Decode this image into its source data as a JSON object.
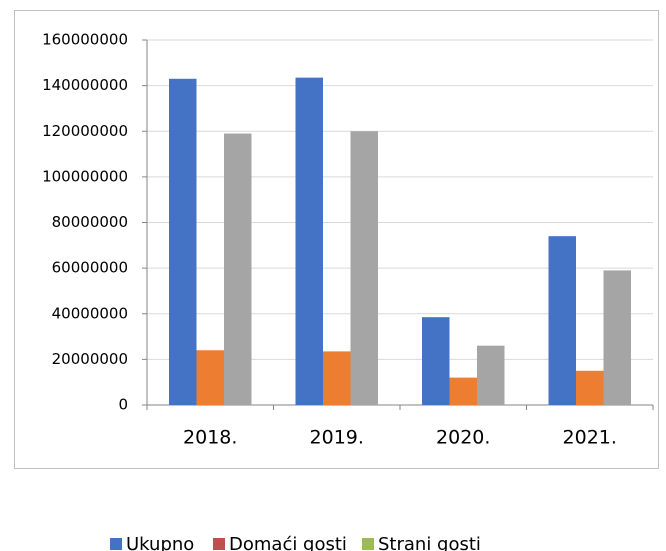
{
  "chart_data": {
    "type": "bar",
    "categories": [
      "2018.",
      "2019.",
      "2020.",
      "2021."
    ],
    "series": [
      {
        "name": "Ukupno",
        "color": "#4472c4",
        "legend_color": "#4472c4",
        "values": [
          143000000,
          143500000,
          38500000,
          74000000
        ]
      },
      {
        "name": "Domaći gosti",
        "color": "#ed7d31",
        "legend_color": "#c0504d",
        "values": [
          24000000,
          23500000,
          12000000,
          15000000
        ]
      },
      {
        "name": "Strani gosti",
        "color": "#a5a5a5",
        "legend_color": "#9bbb59",
        "values": [
          119000000,
          120000000,
          26000000,
          59000000
        ]
      }
    ],
    "ylim": [
      0,
      160000000
    ],
    "yticks": [
      0,
      20000000,
      40000000,
      60000000,
      80000000,
      100000000,
      120000000,
      140000000,
      160000000
    ],
    "grid": true,
    "legend": "bottom"
  }
}
